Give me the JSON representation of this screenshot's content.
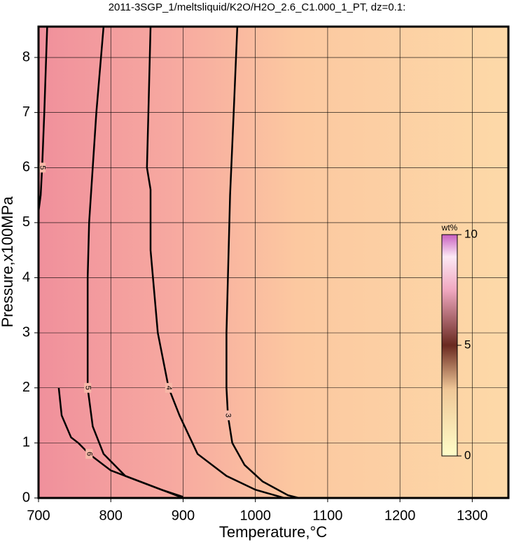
{
  "chart_data": {
    "type": "contour",
    "title": "2011-3SGP_1/meltsliquid/K2O/H2O_2.6_C1.000_1_PT, dz=0.1:",
    "x_label": "Temperature,°C",
    "y_label": "Pressure,x100MPa",
    "xlim": [
      700,
      1350
    ],
    "ylim": [
      0,
      8.56
    ],
    "xticks": [
      700,
      800,
      900,
      1000,
      1100,
      1200,
      1300
    ],
    "yticks": [
      0,
      1,
      2,
      3,
      4,
      5,
      6,
      7,
      8
    ],
    "grid": true,
    "colorbar": {
      "label": "wt%",
      "lim": [
        0,
        10
      ],
      "ticks": [
        0,
        5,
        10
      ]
    },
    "series": [
      {
        "level": 3,
        "x": [
          975,
          970,
          965,
          962,
          960,
          960,
          962,
          968,
          985,
          1010,
          1045,
          1060
        ],
        "y": [
          8.56,
          7,
          5.5,
          4,
          3,
          2,
          1.5,
          1,
          0.6,
          0.3,
          0.05,
          0
        ]
      },
      {
        "level": 4,
        "x": [
          855,
          852,
          850,
          855,
          855,
          865,
          880,
          895,
          920,
          960,
          1000,
          1040
        ],
        "y": [
          8.56,
          7,
          6,
          5.6,
          4.5,
          3,
          2,
          1.5,
          0.8,
          0.4,
          0.15,
          0
        ]
      },
      {
        "level": 5,
        "x": [
          790,
          780,
          775,
          770,
          768,
          768,
          768,
          775,
          790,
          820,
          870,
          900
        ],
        "y": [
          8.56,
          7,
          6,
          5,
          4,
          3,
          2,
          1.3,
          0.8,
          0.4,
          0.15,
          0.02
        ]
      },
      {
        "level": 6,
        "x": [
          728,
          732,
          745,
          755,
          770,
          800,
          850,
          880,
          900
        ],
        "y": [
          2,
          1.5,
          1.1,
          1,
          0.8,
          0.5,
          0.25,
          0.1,
          0
        ]
      },
      {
        "level": 5,
        "x": [
          712,
          708,
          705,
          703,
          700
        ],
        "y": [
          8.56,
          7,
          6,
          5.5,
          5.2
        ]
      }
    ]
  }
}
